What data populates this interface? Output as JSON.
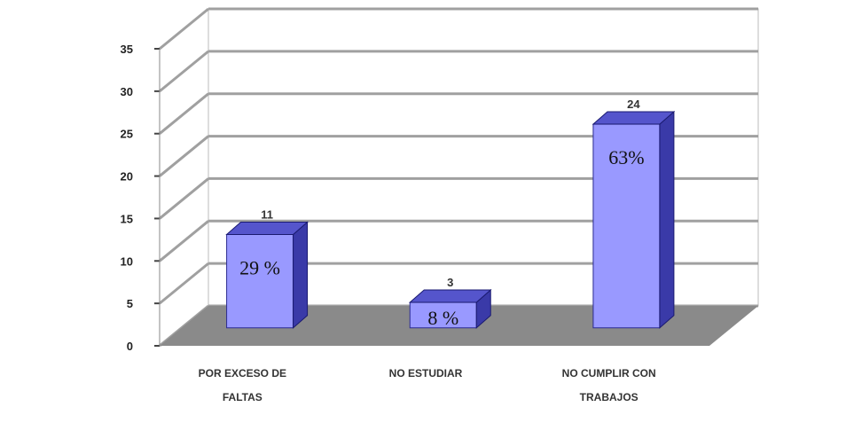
{
  "chart_data": {
    "type": "bar",
    "title": "",
    "xlabel": "",
    "ylabel": "",
    "ylim": [
      0,
      35
    ],
    "yticks": [
      0,
      5,
      10,
      15,
      20,
      25,
      30,
      35
    ],
    "grid": true,
    "categories": [
      "POR EXCESO DE FALTAS",
      "NO ESTUDIAR",
      "NO CUMPLIR CON TRABAJOS"
    ],
    "values": [
      11,
      3,
      24
    ],
    "top_labels": [
      "11",
      "3",
      "24"
    ],
    "percent_labels": [
      "29 %",
      "8 %",
      "63%"
    ],
    "colors": {
      "bar_front": "#9999ff",
      "bar_side": "#3a3aa8",
      "bar_top": "#5555cc",
      "floor": "#8a8a8a",
      "wall": "#ffffff",
      "grid": "#a0a0a0"
    }
  }
}
